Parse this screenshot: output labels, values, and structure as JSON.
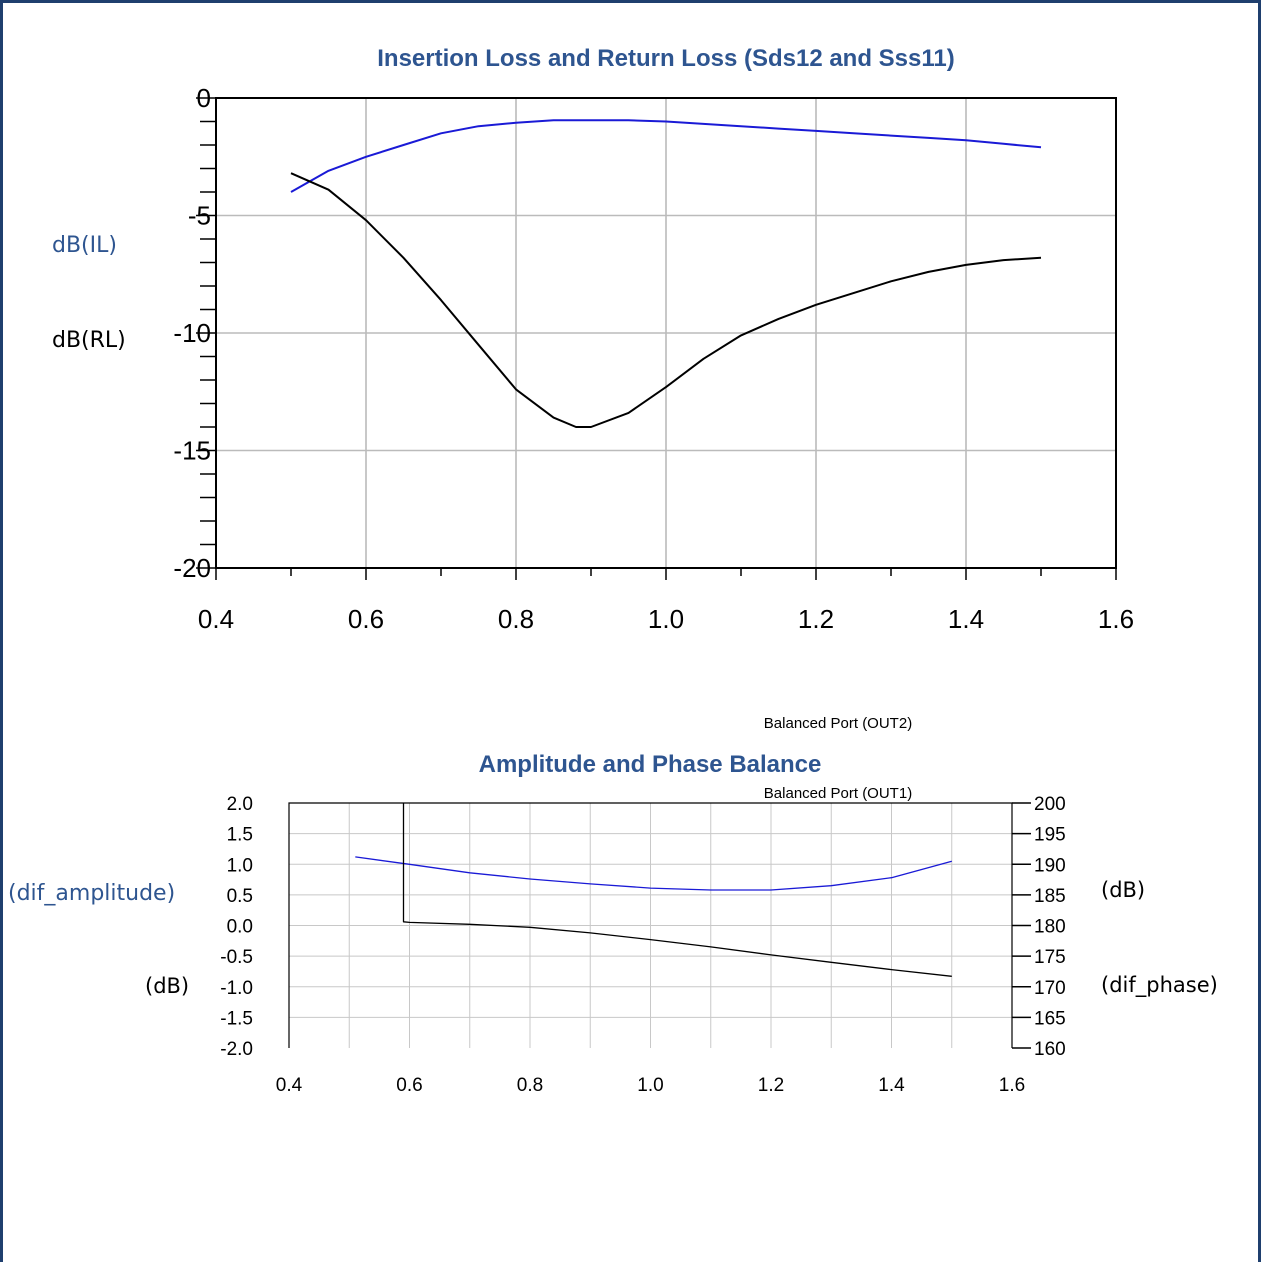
{
  "colors": {
    "accent": "#2e5590",
    "frame": "#1f3f6e",
    "series_blue": "#1a1ad6",
    "series_black": "#000000"
  },
  "chart_data": [
    {
      "type": "line",
      "title": "Insertion Loss and Return Loss (Sds12 and Sss11)",
      "xlabel": "",
      "ylabel_il": "dB(IL)",
      "ylabel_rl": "dB(RL)",
      "xlim": [
        0.4,
        1.6
      ],
      "ylim": [
        -20,
        0
      ],
      "x_ticks": [
        "0.4",
        "0.6",
        "0.8",
        "1.0",
        "1.2",
        "1.4",
        "1.6"
      ],
      "y_ticks": [
        "0",
        "-5",
        "-10",
        "-15",
        "-20"
      ],
      "y_tick_values": [
        0,
        -5,
        -10,
        -15,
        -20
      ],
      "grid": true,
      "series": [
        {
          "color": "blue",
          "x": [
            0.5,
            0.55,
            0.6,
            0.65,
            0.7,
            0.75,
            0.8,
            0.85,
            0.9,
            0.95,
            1.0,
            1.05,
            1.1,
            1.15,
            1.2,
            1.25,
            1.3,
            1.35,
            1.4,
            1.45,
            1.5
          ],
          "y": [
            -4.0,
            -3.1,
            -2.5,
            -2.0,
            -1.5,
            -1.2,
            -1.05,
            -0.95,
            -0.95,
            -0.95,
            -1.0,
            -1.1,
            -1.2,
            -1.3,
            -1.4,
            -1.5,
            -1.6,
            -1.7,
            -1.8,
            -1.95,
            -2.1
          ]
        },
        {
          "color": "black",
          "x": [
            0.5,
            0.55,
            0.6,
            0.65,
            0.7,
            0.75,
            0.8,
            0.85,
            0.88,
            0.9,
            0.95,
            1.0,
            1.05,
            1.1,
            1.15,
            1.2,
            1.25,
            1.3,
            1.35,
            1.4,
            1.45,
            1.5
          ],
          "y": [
            -3.2,
            -3.9,
            -5.2,
            -6.8,
            -8.6,
            -10.5,
            -12.4,
            -13.6,
            -14.0,
            -14.0,
            -13.4,
            -12.3,
            -11.1,
            -10.1,
            -9.4,
            -8.8,
            -8.3,
            -7.8,
            -7.4,
            -7.1,
            -6.9,
            -6.8
          ]
        }
      ]
    },
    {
      "type": "line",
      "title": "Amplitude and Phase Balance",
      "xlabel": "",
      "ylabel_left_top": "(dif_amplitude)",
      "ylabel_left_bottom": "(dB)",
      "ylabel_right_top": "(dB)",
      "ylabel_right_bottom": "(dif_phase)",
      "xlim": [
        0.4,
        1.6
      ],
      "ylim_left": [
        -2.0,
        2.0
      ],
      "ylim_right": [
        160,
        200
      ],
      "x_ticks": [
        "0.4",
        "0.6",
        "0.8",
        "1.0",
        "1.2",
        "1.4",
        "1.6"
      ],
      "y_ticks_left": [
        "2.0",
        "1.5",
        "1.0",
        "0.5",
        "0.0",
        "-0.5",
        "-1.0",
        "-1.5",
        "-2.0"
      ],
      "y_tick_values_left": [
        2.0,
        1.5,
        1.0,
        0.5,
        0.0,
        -0.5,
        -1.0,
        -1.5,
        -2.0
      ],
      "y_ticks_right": [
        "200",
        "195",
        "190",
        "185",
        "180",
        "175",
        "170",
        "165",
        "160"
      ],
      "y_tick_values_right": [
        200,
        195,
        190,
        185,
        180,
        175,
        170,
        165,
        160
      ],
      "annotations": [
        "Balanced Port (OUT2)",
        "Balanced Port (OUT1)"
      ],
      "grid": true,
      "series": [
        {
          "color": "blue",
          "axis": "left",
          "x": [
            0.51,
            0.6,
            0.7,
            0.8,
            0.9,
            1.0,
            1.1,
            1.2,
            1.3,
            1.4,
            1.5
          ],
          "y": [
            1.12,
            1.0,
            0.86,
            0.76,
            0.68,
            0.61,
            0.58,
            0.58,
            0.65,
            0.78,
            1.05
          ]
        },
        {
          "color": "black",
          "axis": "left",
          "x": [
            0.59,
            0.59,
            0.6,
            0.7,
            0.8,
            0.9,
            1.0,
            1.1,
            1.2,
            1.3,
            1.4,
            1.5
          ],
          "y": [
            2.0,
            0.06,
            0.05,
            0.02,
            -0.03,
            -0.12,
            -0.23,
            -0.35,
            -0.48,
            -0.6,
            -0.72,
            -0.83
          ]
        }
      ]
    }
  ]
}
